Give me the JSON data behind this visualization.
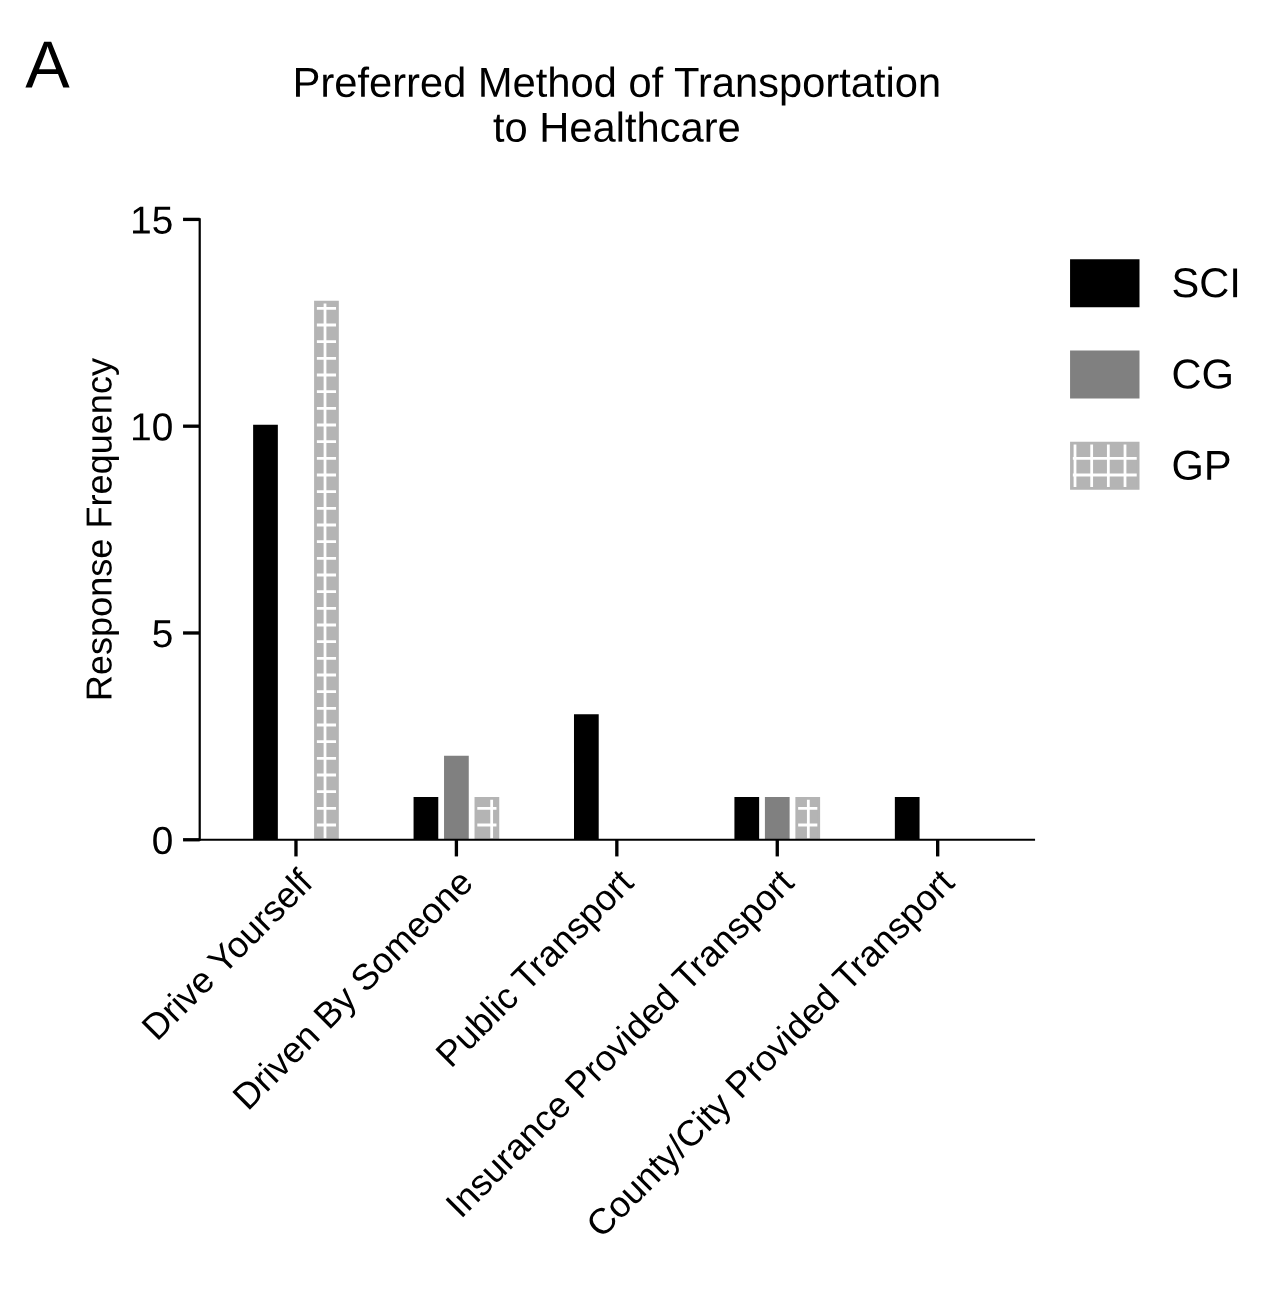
{
  "chart_data": {
    "type": "bar",
    "title": "Preferred Method of Transportation\nto Healthcare",
    "ylabel": "Response Frequency",
    "annotations": [
      "A"
    ],
    "categories": [
      "Drive Yourself",
      "Driven By Someone",
      "Public Transport",
      "Insurance Provided Transport",
      "County/City Provided Transport"
    ],
    "series": [
      {
        "name": "SCI",
        "color": "#000000",
        "values": [
          10,
          1,
          3,
          1,
          1
        ]
      },
      {
        "name": "CG",
        "color": "#808080",
        "values": [
          null,
          2,
          null,
          1,
          null
        ]
      },
      {
        "name": "GP",
        "color": "#b4b4b4",
        "values": [
          13,
          1,
          null,
          1,
          null
        ]
      }
    ],
    "ylim": [
      0,
      15
    ],
    "yticks": [
      0,
      5,
      10,
      15
    ],
    "grid": false,
    "legend": "right"
  }
}
